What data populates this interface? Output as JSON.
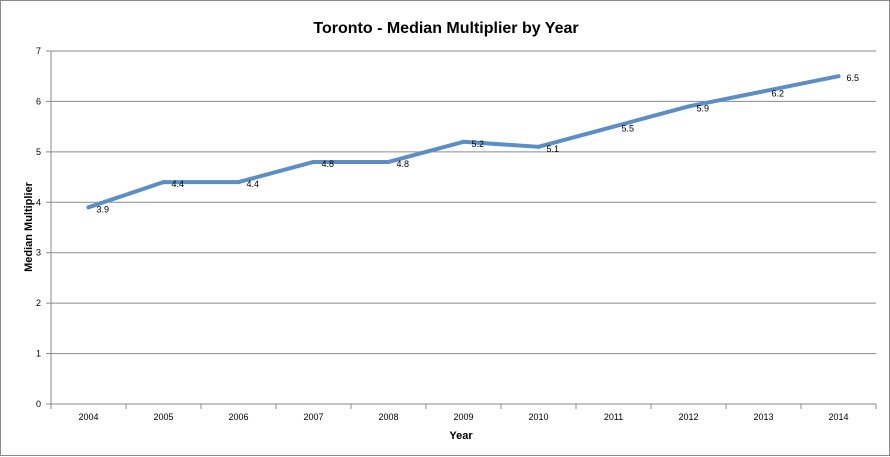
{
  "chart_data": {
    "type": "line",
    "title": "Toronto - Median Multiplier by Year",
    "xlabel": "Year",
    "ylabel": "Median Multiplier",
    "categories": [
      "2004",
      "2005",
      "2006",
      "2007",
      "2008",
      "2009",
      "2010",
      "2011",
      "2012",
      "2013",
      "2014"
    ],
    "series": [
      {
        "values": [
          3.9,
          4.4,
          4.4,
          4.8,
          4.8,
          5.2,
          5.1,
          5.5,
          5.9,
          6.2,
          6.5
        ]
      }
    ],
    "data_labels": [
      "3.9",
      "4.4",
      "4.4",
      "4.8",
      "4.8",
      "5.2",
      "5.1",
      "5.5",
      "5.9",
      "6.2",
      "6.5"
    ],
    "y_ticks": [
      "0",
      "1",
      "2",
      "3",
      "4",
      "5",
      "6",
      "7"
    ],
    "ylim": [
      0,
      7
    ],
    "grid": true,
    "legend": "none",
    "line_color": "#5B8EC4"
  }
}
